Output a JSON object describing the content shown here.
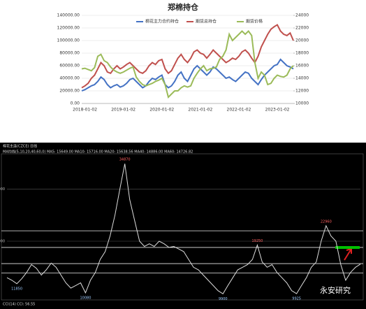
{
  "chart_data": [
    {
      "type": "line",
      "title": "郑棉持仓",
      "categories": [
        null,
        "2018-01-02",
        null,
        null,
        null,
        null,
        null,
        null,
        null,
        null,
        null,
        null,
        null,
        "2019-01-02",
        null,
        null,
        null,
        null,
        null,
        null,
        null,
        null,
        null,
        null,
        null,
        "2020-01-02",
        null,
        null,
        null,
        null,
        null,
        null,
        null,
        null,
        null,
        null,
        null,
        "2021-01-02",
        null,
        null,
        null,
        null,
        null,
        null,
        null,
        null,
        null,
        null,
        null,
        "2022-01-02",
        null,
        null,
        null,
        null,
        null,
        null,
        null,
        null,
        null,
        null,
        null,
        "2023-01-02",
        null,
        null,
        null,
        null,
        null
      ],
      "series": [
        {
          "name": "棉花主力合约持仓",
          "color": "#4472c4",
          "values": [
            20000,
            22000,
            25000,
            28000,
            30000,
            35000,
            42000,
            38000,
            30000,
            25000,
            28000,
            30000,
            26000,
            28000,
            32000,
            38000,
            40000,
            35000,
            30000,
            25000,
            28000,
            35000,
            40000,
            38000,
            42000,
            45000,
            30000,
            25000,
            28000,
            35000,
            45000,
            50000,
            40000,
            35000,
            45000,
            55000,
            60000,
            55000,
            50000,
            45000,
            50000,
            58000,
            55000,
            50000,
            45000,
            40000,
            42000,
            38000,
            35000,
            40000,
            45000,
            50000,
            48000,
            40000,
            35000,
            30000,
            38000,
            45000,
            50000,
            55000,
            60000,
            62000,
            70000,
            65000,
            60000,
            58000,
            55000
          ]
        },
        {
          "name": "期货总持仓",
          "color": "#c0504d",
          "values": [
            25000,
            28000,
            32000,
            40000,
            45000,
            55000,
            65000,
            60000,
            50000,
            48000,
            55000,
            60000,
            55000,
            58000,
            62000,
            65000,
            60000,
            55000,
            50000,
            48000,
            52000,
            60000,
            65000,
            62000,
            68000,
            70000,
            55000,
            48000,
            52000,
            62000,
            72000,
            78000,
            70000,
            65000,
            72000,
            82000,
            85000,
            80000,
            78000,
            72000,
            78000,
            85000,
            80000,
            75000,
            70000,
            65000,
            68000,
            72000,
            70000,
            75000,
            82000,
            85000,
            80000,
            72000,
            65000,
            75000,
            90000,
            100000,
            110000,
            118000,
            122000,
            125000,
            115000,
            110000,
            108000,
            112000,
            100000
          ]
        },
        {
          "name": "期货价格",
          "color": "#9bbb59",
          "axis": "y2",
          "values": [
            15500,
            15600,
            15400,
            15200,
            15700,
            17500,
            17800,
            16800,
            16500,
            15800,
            15300,
            15000,
            14800,
            15000,
            15300,
            15600,
            15800,
            14200,
            13500,
            13000,
            12800,
            13000,
            13200,
            13500,
            13700,
            14000,
            13000,
            11000,
            11500,
            12000,
            12000,
            12500,
            12800,
            12600,
            12800,
            14000,
            14800,
            15500,
            16000,
            15200,
            15500,
            15600,
            15800,
            17000,
            17500,
            18500,
            21000,
            20000,
            20500,
            21000,
            21500,
            21000,
            21500,
            20800,
            16500,
            14000,
            15000,
            14500,
            13000,
            13200,
            14000,
            14500,
            14300,
            14200,
            14500,
            15500,
            16000
          ]
        }
      ],
      "ylim": [
        0,
        140000
      ],
      "yticks": [
        {
          "value": 0,
          "label": "0.00"
        },
        {
          "value": 20000,
          "label": "20000.00"
        },
        {
          "value": 40000,
          "label": "40000.00"
        },
        {
          "value": 60000,
          "label": "60000.00"
        },
        {
          "value": 80000,
          "label": "80000.00"
        },
        {
          "value": 100000,
          "label": "100000.00"
        },
        {
          "value": 120000,
          "label": "120000.00"
        },
        {
          "value": 140000,
          "label": "140000.00"
        }
      ],
      "y2lim": [
        10000,
        24000
      ],
      "y2ticks": [
        10000,
        12000,
        14000,
        16000,
        18000,
        20000,
        22000,
        24000
      ],
      "grid": true,
      "legend": "top"
    },
    {
      "type": "line",
      "title": "棉花主连(CZCE) 日线",
      "subtitle": "MA均线(5,10,20,40,60,0)  MA5: 15649.00  MA10: 15716.00  MA20: 15638.56  MA40: 14886.00  MA60: 14726.82",
      "footer": "CCI(14)  CCI: 56.55",
      "watermark": "永安研究",
      "color": "#dcdcdc",
      "values": [
        13000,
        12500,
        11850,
        12800,
        14000,
        15500,
        14800,
        13500,
        14500,
        15800,
        15000,
        13500,
        12000,
        11000,
        11500,
        12000,
        10080,
        12500,
        14000,
        16500,
        18000,
        21000,
        25000,
        30000,
        34870,
        28000,
        24000,
        20000,
        19000,
        19500,
        19000,
        20000,
        19500,
        18800,
        19000,
        18500,
        18000,
        16500,
        15000,
        14500,
        13500,
        12500,
        11500,
        10500,
        9900,
        11500,
        13000,
        14500,
        15000,
        15500,
        16500,
        19250,
        16000,
        15000,
        15500,
        14000,
        13000,
        12000,
        10500,
        9925,
        11500,
        13000,
        15000,
        16000,
        20000,
        22960,
        21000,
        20000,
        15500,
        12500,
        14000,
        15000,
        15600
      ],
      "labeled_points": [
        2,
        16,
        24,
        44,
        51,
        59,
        65
      ],
      "levels": [
        22000,
        18800,
        15700,
        13900
      ],
      "target": 18800,
      "target_color": "#00c000",
      "ylim": [
        9000,
        36500
      ],
      "yticks": [
        20000,
        30000
      ]
    }
  ]
}
